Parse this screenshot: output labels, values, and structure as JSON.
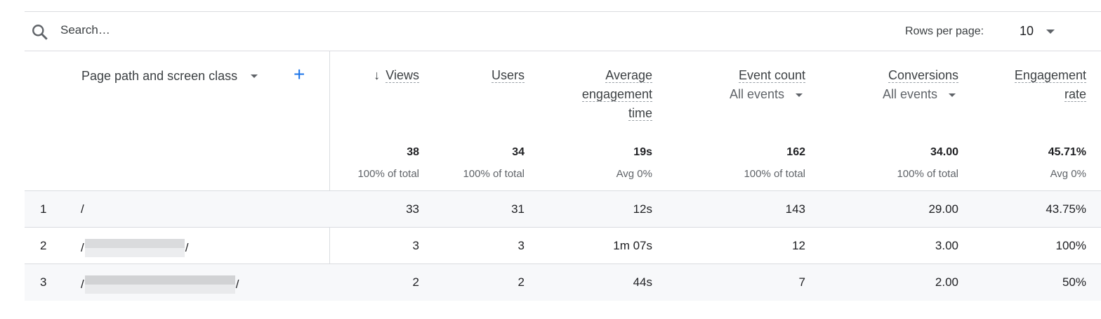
{
  "search": {
    "placeholder": "Search…"
  },
  "pagination": {
    "rows_per_page_label": "Rows per page:",
    "rows_per_page_value": "10"
  },
  "dimension": {
    "label": "Page path and screen class",
    "add_icon": "plus-icon"
  },
  "columns": [
    {
      "label": "Views",
      "sorted": "descending",
      "total": "38",
      "total_sub": "100% of total"
    },
    {
      "label": "Users",
      "total": "34",
      "total_sub": "100% of total"
    },
    {
      "label": "Average engagement time",
      "total": "19s",
      "total_sub": "Avg 0%"
    },
    {
      "label": "Event count",
      "filter": "All events",
      "total": "162",
      "total_sub": "100% of total"
    },
    {
      "label": "Conversions",
      "filter": "All events",
      "total": "34.00",
      "total_sub": "100% of total"
    },
    {
      "label": "Engagement rate",
      "total": "45.71%",
      "total_sub": "Avg 0%"
    }
  ],
  "rows": [
    {
      "index": "1",
      "path_start": "/",
      "path_end": "",
      "values": [
        "33",
        "31",
        "12s",
        "143",
        "29.00",
        "43.75%"
      ]
    },
    {
      "index": "2",
      "path_start": "/",
      "path_end": "/",
      "values": [
        "3",
        "3",
        "1m 07s",
        "12",
        "3.00",
        "100%"
      ]
    },
    {
      "index": "3",
      "path_start": "/",
      "path_end": "/",
      "values": [
        "2",
        "2",
        "44s",
        "7",
        "2.00",
        "50%"
      ]
    }
  ],
  "colors": {
    "accent": "#1a73e8",
    "zebra": "#f7f8fa",
    "divider": "#dadce0"
  }
}
